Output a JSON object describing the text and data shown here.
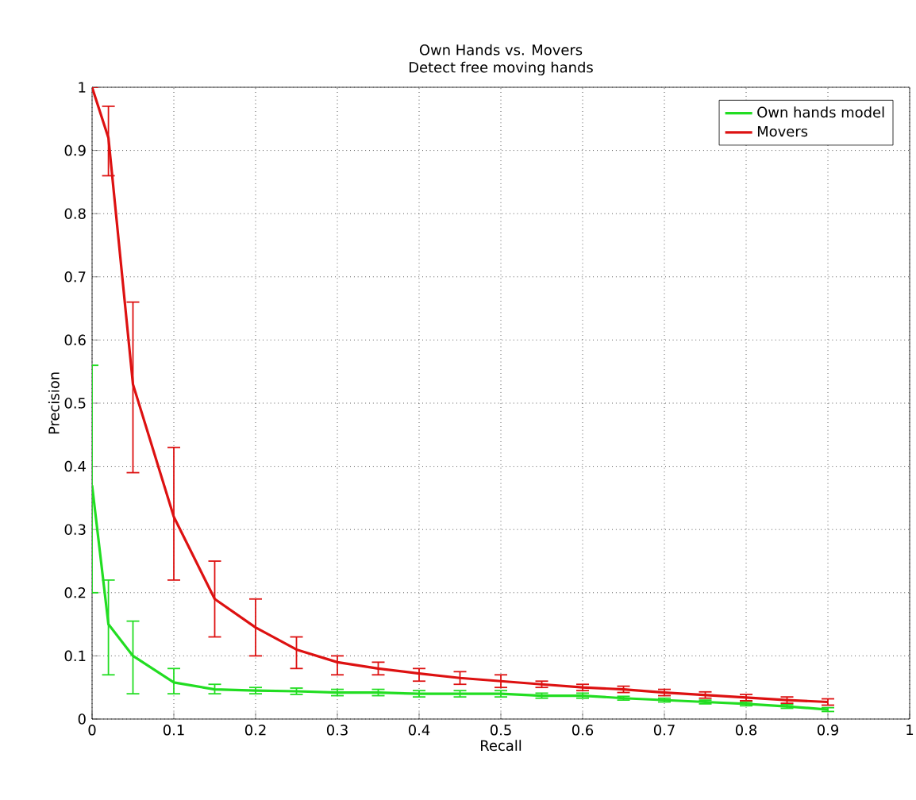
{
  "chart_data": {
    "type": "line",
    "title": "Own Hands vs. Movers",
    "subtitle": "Detect free moving hands",
    "xlabel": "Recall",
    "ylabel": "Precision",
    "xlim": [
      0,
      1
    ],
    "ylim": [
      0,
      1
    ],
    "xticks": [
      0,
      0.1,
      0.2,
      0.3,
      0.4,
      0.5,
      0.6,
      0.7,
      0.8,
      0.9,
      1
    ],
    "yticks": [
      0,
      0.1,
      0.2,
      0.3,
      0.4,
      0.5,
      0.6,
      0.7,
      0.8,
      0.9,
      1
    ],
    "grid": true,
    "legend": "top right",
    "marker": "none",
    "line_style": "solid",
    "series": [
      {
        "name": "Own hands model",
        "color": "#22dd22",
        "x": [
          0,
          0.02,
          0.05,
          0.1,
          0.15,
          0.2,
          0.25,
          0.3,
          0.35,
          0.4,
          0.45,
          0.5,
          0.55,
          0.6,
          0.65,
          0.7,
          0.75,
          0.8,
          0.85,
          0.9
        ],
        "values": [
          0.37,
          0.15,
          0.1,
          0.058,
          0.047,
          0.045,
          0.044,
          0.042,
          0.042,
          0.04,
          0.04,
          0.04,
          0.037,
          0.037,
          0.033,
          0.03,
          0.027,
          0.024,
          0.02,
          0.015
        ],
        "errors": [
          [
            0.2,
            0.56
          ],
          [
            0.07,
            0.22
          ],
          [
            0.04,
            0.155
          ],
          [
            0.04,
            0.08
          ],
          [
            0.04,
            0.055
          ],
          [
            0.04,
            0.05
          ],
          0.005,
          0.005,
          0.005,
          0.005,
          0.005,
          0.005,
          0.004,
          0.004,
          0.003,
          0.003,
          0.003,
          0.003,
          0.003,
          0.003
        ]
      },
      {
        "name": "Movers",
        "color": "#dd1111",
        "x": [
          0,
          0.02,
          0.05,
          0.1,
          0.15,
          0.2,
          0.25,
          0.3,
          0.35,
          0.4,
          0.45,
          0.5,
          0.55,
          0.6,
          0.65,
          0.7,
          0.75,
          0.8,
          0.85,
          0.9
        ],
        "values": [
          1.0,
          0.92,
          0.53,
          0.32,
          0.19,
          0.145,
          0.11,
          0.09,
          0.08,
          0.072,
          0.065,
          0.06,
          0.055,
          0.05,
          0.047,
          0.042,
          0.038,
          0.034,
          0.03,
          0.027
        ],
        "errors": [
          null,
          [
            0.86,
            0.97
          ],
          [
            0.39,
            0.66
          ],
          [
            0.22,
            0.43
          ],
          [
            0.13,
            0.25
          ],
          [
            0.1,
            0.19
          ],
          [
            0.08,
            0.13
          ],
          [
            0.07,
            0.1
          ],
          [
            0.07,
            0.09
          ],
          [
            0.06,
            0.08
          ],
          [
            0.055,
            0.075
          ],
          [
            0.05,
            0.07
          ],
          [
            0.05,
            0.06
          ],
          [
            0.045,
            0.055
          ],
          [
            0.042,
            0.052
          ],
          [
            0.037,
            0.047
          ],
          [
            0.033,
            0.043
          ],
          [
            0.029,
            0.039
          ],
          [
            0.025,
            0.035
          ],
          [
            0.022,
            0.032
          ]
        ]
      }
    ]
  }
}
